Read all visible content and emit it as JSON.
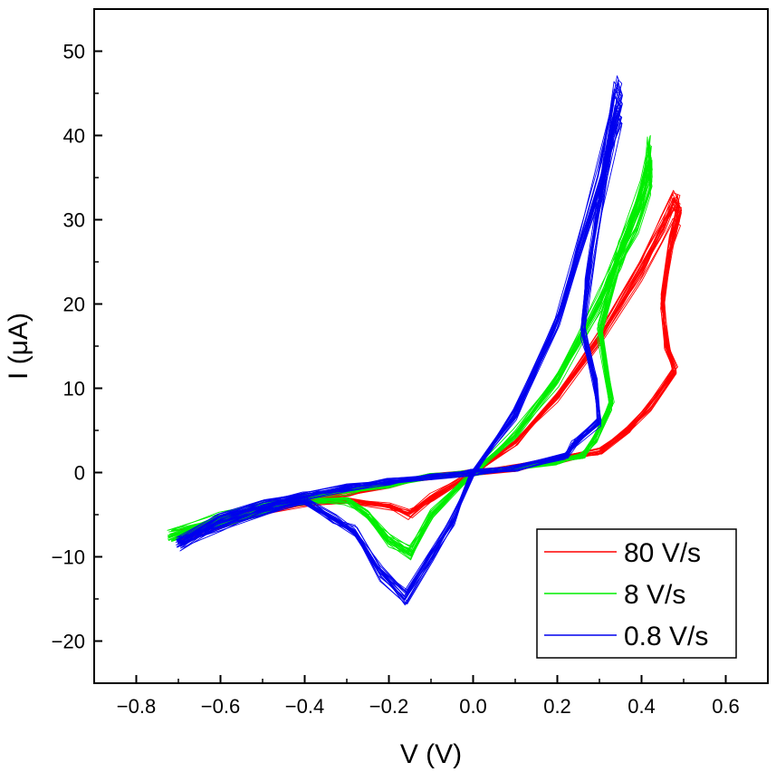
{
  "chart_data": {
    "type": "line",
    "title": "",
    "xlabel": "V (V)",
    "ylabel": "I (μA)",
    "xlim": [
      -0.9,
      0.7
    ],
    "ylim": [
      -25,
      55
    ],
    "xticks": [
      -0.8,
      -0.6,
      -0.4,
      -0.2,
      0.0,
      0.2,
      0.4,
      0.6
    ],
    "xtick_labels": [
      "−0.8",
      "−0.6",
      "−0.4",
      "−0.2",
      "0.0",
      "0.2",
      "0.4",
      "0.6"
    ],
    "yticks": [
      -20,
      -10,
      0,
      10,
      20,
      30,
      40,
      50
    ],
    "ytick_labels": [
      "−20",
      "−10",
      "0",
      "10",
      "20",
      "30",
      "40",
      "50"
    ],
    "grid": false,
    "legend_position": "bottom-right",
    "series": [
      {
        "name": "80 V/s",
        "color": "#ff0000",
        "cycles": 20,
        "points": [
          [
            0.0,
            0.0
          ],
          [
            0.1,
            3.5
          ],
          [
            0.2,
            9.0
          ],
          [
            0.3,
            16.0
          ],
          [
            0.4,
            24.0
          ],
          [
            0.45,
            29.0
          ],
          [
            0.48,
            32.0
          ],
          [
            0.49,
            31.0
          ],
          [
            0.47,
            27.0
          ],
          [
            0.45,
            20.0
          ],
          [
            0.46,
            15.0
          ],
          [
            0.48,
            12.0
          ],
          [
            0.42,
            8.0
          ],
          [
            0.37,
            5.0
          ],
          [
            0.3,
            2.5
          ],
          [
            0.2,
            1.5
          ],
          [
            0.1,
            0.5
          ],
          [
            0.0,
            0.0
          ],
          [
            -0.1,
            -3.0
          ],
          [
            -0.15,
            -5.0
          ],
          [
            -0.2,
            -4.0
          ],
          [
            -0.3,
            -3.3
          ],
          [
            -0.4,
            -3.5
          ],
          [
            -0.5,
            -4.6
          ],
          [
            -0.6,
            -6.0
          ],
          [
            -0.7,
            -7.5
          ],
          [
            -0.6,
            -5.5
          ],
          [
            -0.5,
            -4.2
          ],
          [
            -0.4,
            -3.3
          ],
          [
            -0.3,
            -2.5
          ],
          [
            -0.2,
            -1.5
          ],
          [
            -0.1,
            -0.5
          ],
          [
            0.0,
            0.0
          ]
        ]
      },
      {
        "name": "8 V/s",
        "color": "#00ee00",
        "cycles": 20,
        "points": [
          [
            0.0,
            0.0
          ],
          [
            0.1,
            4.5
          ],
          [
            0.2,
            11.0
          ],
          [
            0.3,
            20.0
          ],
          [
            0.35,
            26.0
          ],
          [
            0.4,
            33.0
          ],
          [
            0.42,
            38.0
          ],
          [
            0.42,
            35.0
          ],
          [
            0.39,
            30.0
          ],
          [
            0.35,
            26.0
          ],
          [
            0.3,
            17.0
          ],
          [
            0.33,
            8.0
          ],
          [
            0.29,
            4.0
          ],
          [
            0.26,
            2.0
          ],
          [
            0.2,
            1.3
          ],
          [
            0.1,
            0.5
          ],
          [
            0.0,
            0.0
          ],
          [
            -0.1,
            -5.0
          ],
          [
            -0.15,
            -9.5
          ],
          [
            -0.2,
            -8.0
          ],
          [
            -0.25,
            -5.0
          ],
          [
            -0.3,
            -3.3
          ],
          [
            -0.4,
            -3.4
          ],
          [
            -0.5,
            -4.6
          ],
          [
            -0.6,
            -6.0
          ],
          [
            -0.72,
            -7.5
          ],
          [
            -0.6,
            -5.4
          ],
          [
            -0.5,
            -4.0
          ],
          [
            -0.4,
            -3.0
          ],
          [
            -0.3,
            -2.2
          ],
          [
            -0.2,
            -1.4
          ],
          [
            -0.1,
            -0.5
          ],
          [
            0.0,
            0.0
          ]
        ]
      },
      {
        "name": "0.8 V/s",
        "color": "#0000ee",
        "cycles": 20,
        "points": [
          [
            0.0,
            0.0
          ],
          [
            0.1,
            7.0
          ],
          [
            0.2,
            18.0
          ],
          [
            0.3,
            35.0
          ],
          [
            0.34,
            45.0
          ],
          [
            0.35,
            44.0
          ],
          [
            0.33,
            40.0
          ],
          [
            0.3,
            32.0
          ],
          [
            0.27,
            22.0
          ],
          [
            0.26,
            17.0
          ],
          [
            0.29,
            11.0
          ],
          [
            0.3,
            6.0
          ],
          [
            0.24,
            3.5
          ],
          [
            0.22,
            2.0
          ],
          [
            0.1,
            0.5
          ],
          [
            0.0,
            0.0
          ],
          [
            -0.05,
            -6.0
          ],
          [
            -0.1,
            -10.0
          ],
          [
            -0.16,
            -15.0
          ],
          [
            -0.22,
            -12.0
          ],
          [
            -0.28,
            -7.0
          ],
          [
            -0.33,
            -5.5
          ],
          [
            -0.4,
            -3.4
          ],
          [
            -0.5,
            -4.6
          ],
          [
            -0.6,
            -6.4
          ],
          [
            -0.7,
            -8.5
          ],
          [
            -0.6,
            -5.5
          ],
          [
            -0.5,
            -3.8
          ],
          [
            -0.4,
            -2.8
          ],
          [
            -0.3,
            -1.8
          ],
          [
            -0.2,
            -1.1
          ],
          [
            -0.1,
            -0.5
          ],
          [
            0.0,
            0.0
          ]
        ]
      }
    ]
  }
}
